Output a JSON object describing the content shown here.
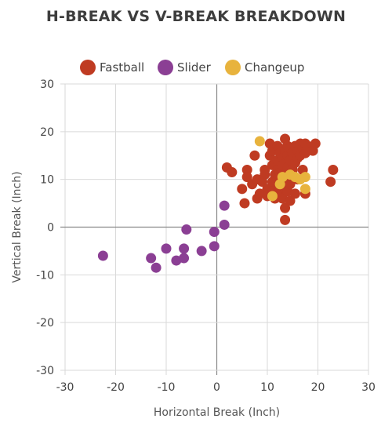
{
  "chart_data": {
    "type": "scatter",
    "title": "H-BREAK VS V-BREAK BREAKDOWN",
    "xlabel": "Horizontal Break (Inch)",
    "ylabel": "Vertical Break (Inch)",
    "xlim": [
      -30,
      30
    ],
    "ylim": [
      -30,
      30
    ],
    "xticks": [
      -30,
      -20,
      -10,
      0,
      10,
      20,
      30
    ],
    "yticks": [
      -30,
      -20,
      -10,
      0,
      10,
      20,
      30
    ],
    "grid": true,
    "legend": "top",
    "series": [
      {
        "name": "Fastball",
        "color": "#bf3b22",
        "points": [
          [
            2,
            12.5
          ],
          [
            3,
            11.5
          ],
          [
            5,
            8
          ],
          [
            5.5,
            5
          ],
          [
            6,
            12
          ],
          [
            6,
            10.5
          ],
          [
            7,
            9
          ],
          [
            7.5,
            15
          ],
          [
            8,
            6
          ],
          [
            8,
            10
          ],
          [
            8.5,
            7
          ],
          [
            9,
            9.5
          ],
          [
            9.5,
            12
          ],
          [
            9.5,
            11
          ],
          [
            10,
            8
          ],
          [
            10,
            6.5
          ],
          [
            10.5,
            17.5
          ],
          [
            10.5,
            15
          ],
          [
            11,
            16
          ],
          [
            11,
            13
          ],
          [
            11,
            9.5
          ],
          [
            11,
            7.5
          ],
          [
            11.5,
            11
          ],
          [
            11.5,
            6
          ],
          [
            12,
            17
          ],
          [
            12,
            14
          ],
          [
            12,
            12
          ],
          [
            12,
            10
          ],
          [
            12,
            8.5
          ],
          [
            12.5,
            16.5
          ],
          [
            12.5,
            15.5
          ],
          [
            12.5,
            11.5
          ],
          [
            12.5,
            7
          ],
          [
            13,
            14.5
          ],
          [
            13,
            13
          ],
          [
            13,
            9.5
          ],
          [
            13,
            6
          ],
          [
            13.5,
            18.5
          ],
          [
            13.5,
            16
          ],
          [
            13.5,
            11
          ],
          [
            13.5,
            8
          ],
          [
            13.5,
            4
          ],
          [
            13.5,
            1.5
          ],
          [
            14,
            17
          ],
          [
            14,
            15
          ],
          [
            14,
            12.5
          ],
          [
            14,
            10
          ],
          [
            14,
            7.5
          ],
          [
            14.5,
            16.5
          ],
          [
            14.5,
            14
          ],
          [
            14.5,
            9
          ],
          [
            14.5,
            5.5
          ],
          [
            15,
            15.5
          ],
          [
            15,
            12
          ],
          [
            15,
            10.5
          ],
          [
            15.5,
            17
          ],
          [
            15.5,
            13.5
          ],
          [
            15.5,
            7
          ],
          [
            16,
            16
          ],
          [
            16,
            14.5
          ],
          [
            16,
            10
          ],
          [
            16.5,
            17.5
          ],
          [
            16.5,
            15
          ],
          [
            17,
            16.5
          ],
          [
            17,
            12
          ],
          [
            17.5,
            17.5
          ],
          [
            17.5,
            15.5
          ],
          [
            17.5,
            7
          ],
          [
            18,
            17
          ],
          [
            19,
            16
          ],
          [
            19.5,
            17.5
          ],
          [
            22.5,
            9.5
          ],
          [
            23,
            12
          ]
        ]
      },
      {
        "name": "Slider",
        "color": "#8b3f94",
        "points": [
          [
            -22.5,
            -6
          ],
          [
            -13,
            -6.5
          ],
          [
            -12,
            -8.5
          ],
          [
            -10,
            -4.5
          ],
          [
            -8,
            -7
          ],
          [
            -6.5,
            -4.5
          ],
          [
            -6.5,
            -6.5
          ],
          [
            -6,
            -0.5
          ],
          [
            -3,
            -5
          ],
          [
            -0.5,
            -4
          ],
          [
            -0.5,
            -1
          ],
          [
            1.5,
            0.5
          ],
          [
            1.5,
            4.5
          ]
        ]
      },
      {
        "name": "Changeup",
        "color": "#e8b33d",
        "points": [
          [
            8.5,
            18
          ],
          [
            11,
            6.5
          ],
          [
            12.5,
            9
          ],
          [
            13,
            10.5
          ],
          [
            14.5,
            11
          ],
          [
            15.5,
            10.5
          ],
          [
            16.5,
            10
          ],
          [
            17.5,
            10.5
          ],
          [
            17.5,
            8
          ]
        ]
      }
    ]
  }
}
